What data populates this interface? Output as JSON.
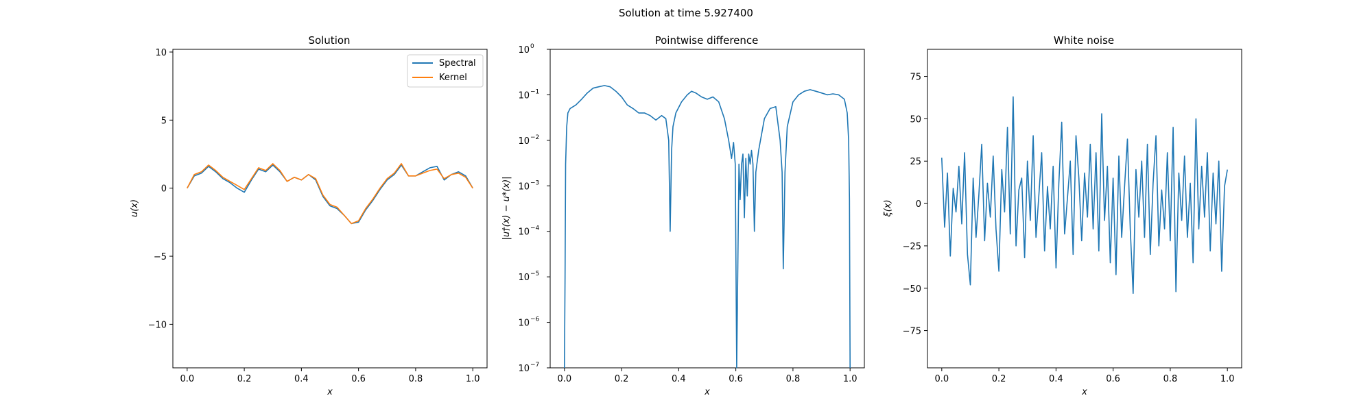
{
  "suptitle": "Solution at time 5.927400",
  "colors": {
    "spectral": "#1f77b4",
    "kernel": "#ff7f0e",
    "axes": "#000000"
  },
  "chart_data": [
    {
      "type": "line",
      "title": "Solution",
      "xlabel": "x",
      "ylabel": "u(x)",
      "xlim": [
        -0.05,
        1.05
      ],
      "ylim": [
        -13.2,
        10.2
      ],
      "yscale": "linear",
      "xticks": [
        0.0,
        0.2,
        0.4,
        0.6,
        0.8,
        1.0
      ],
      "xtick_labels": [
        "0.0",
        "0.2",
        "0.4",
        "0.6",
        "0.8",
        "1.0"
      ],
      "yticks": [
        -10,
        -5,
        0,
        5,
        10
      ],
      "ytick_labels": [
        "−10",
        "−5",
        "0",
        "5",
        "10"
      ],
      "legend": {
        "placement": "upper-right",
        "entries": [
          "Spectral",
          "Kernel"
        ]
      },
      "series": [
        {
          "name": "Spectral",
          "color": "#1f77b4",
          "x": [
            0.0,
            0.025,
            0.05,
            0.075,
            0.1,
            0.125,
            0.15,
            0.175,
            0.2,
            0.225,
            0.25,
            0.275,
            0.3,
            0.325,
            0.35,
            0.375,
            0.4,
            0.425,
            0.45,
            0.475,
            0.5,
            0.525,
            0.55,
            0.575,
            0.6,
            0.625,
            0.65,
            0.675,
            0.7,
            0.725,
            0.75,
            0.775,
            0.8,
            0.825,
            0.85,
            0.875,
            0.9,
            0.925,
            0.95,
            0.975,
            1.0
          ],
          "y": [
            0.0,
            0.9,
            1.1,
            1.6,
            1.2,
            0.7,
            0.4,
            0.0,
            -0.3,
            0.6,
            1.4,
            1.2,
            1.7,
            1.2,
            0.5,
            0.8,
            0.6,
            1.0,
            0.6,
            -0.6,
            -1.3,
            -1.5,
            -2.0,
            -2.6,
            -2.5,
            -1.6,
            -0.9,
            -0.1,
            0.6,
            1.0,
            1.7,
            0.9,
            0.9,
            1.2,
            1.5,
            1.6,
            0.6,
            1.0,
            1.2,
            0.9,
            0.0
          ]
        },
        {
          "name": "Kernel",
          "color": "#ff7f0e",
          "x": [
            0.0,
            0.025,
            0.05,
            0.075,
            0.1,
            0.125,
            0.15,
            0.175,
            0.2,
            0.225,
            0.25,
            0.275,
            0.3,
            0.325,
            0.35,
            0.375,
            0.4,
            0.425,
            0.45,
            0.475,
            0.5,
            0.525,
            0.55,
            0.575,
            0.6,
            0.625,
            0.65,
            0.675,
            0.7,
            0.725,
            0.75,
            0.775,
            0.8,
            0.825,
            0.85,
            0.875,
            0.9,
            0.925,
            0.95,
            0.975,
            1.0
          ],
          "y": [
            0.0,
            1.0,
            1.2,
            1.7,
            1.3,
            0.8,
            0.5,
            0.2,
            -0.1,
            0.7,
            1.5,
            1.3,
            1.8,
            1.3,
            0.5,
            0.8,
            0.6,
            1.0,
            0.7,
            -0.5,
            -1.2,
            -1.4,
            -2.0,
            -2.6,
            -2.4,
            -1.5,
            -0.8,
            0.0,
            0.7,
            1.1,
            1.8,
            0.9,
            0.9,
            1.1,
            1.3,
            1.4,
            0.7,
            1.0,
            1.1,
            0.8,
            0.0
          ]
        }
      ]
    },
    {
      "type": "line",
      "title": "Pointwise difference",
      "xlabel": "x",
      "ylabel": "|u†(x) − u*(x)|",
      "xlim": [
        -0.05,
        1.05
      ],
      "ylim": [
        1e-07,
        1
      ],
      "yscale": "log",
      "xticks": [
        0.0,
        0.2,
        0.4,
        0.6,
        0.8,
        1.0
      ],
      "xtick_labels": [
        "0.0",
        "0.2",
        "0.4",
        "0.6",
        "0.8",
        "1.0"
      ],
      "yticks": [
        1e-07,
        1e-06,
        1e-05,
        0.0001,
        0.001,
        0.01,
        0.1,
        1
      ],
      "ytick_labels": [
        "10",
        "10",
        "10",
        "10",
        "10",
        "10",
        "10",
        "10"
      ],
      "ytick_exponents": [
        "−7",
        "−6",
        "−5",
        "−4",
        "−3",
        "−2",
        "−1",
        "0"
      ],
      "series": [
        {
          "name": "",
          "color": "#1f77b4",
          "x": [
            0.0,
            0.002,
            0.004,
            0.008,
            0.012,
            0.02,
            0.04,
            0.06,
            0.08,
            0.1,
            0.12,
            0.14,
            0.16,
            0.18,
            0.2,
            0.22,
            0.24,
            0.26,
            0.28,
            0.3,
            0.32,
            0.34,
            0.355,
            0.365,
            0.37,
            0.375,
            0.38,
            0.39,
            0.41,
            0.43,
            0.445,
            0.46,
            0.48,
            0.5,
            0.52,
            0.54,
            0.56,
            0.575,
            0.585,
            0.592,
            0.598,
            0.603,
            0.607,
            0.611,
            0.615,
            0.62,
            0.625,
            0.63,
            0.635,
            0.64,
            0.645,
            0.65,
            0.655,
            0.66,
            0.665,
            0.67,
            0.68,
            0.7,
            0.72,
            0.74,
            0.755,
            0.762,
            0.766,
            0.772,
            0.78,
            0.8,
            0.82,
            0.84,
            0.86,
            0.88,
            0.9,
            0.92,
            0.94,
            0.96,
            0.98,
            0.99,
            0.995,
            0.998,
            1.0
          ],
          "y": [
            1e-07,
            1e-05,
            0.003,
            0.02,
            0.04,
            0.05,
            0.06,
            0.08,
            0.11,
            0.14,
            0.15,
            0.16,
            0.15,
            0.12,
            0.09,
            0.06,
            0.05,
            0.04,
            0.04,
            0.035,
            0.028,
            0.035,
            0.03,
            0.01,
            0.0001,
            0.006,
            0.02,
            0.04,
            0.07,
            0.1,
            0.12,
            0.11,
            0.09,
            0.08,
            0.09,
            0.07,
            0.03,
            0.01,
            0.004,
            0.009,
            0.003,
            1e-07,
            2e-05,
            0.003,
            0.0005,
            0.003,
            0.005,
            0.0002,
            0.004,
            0.0006,
            0.005,
            0.003,
            0.006,
            0.003,
            0.0001,
            0.002,
            0.006,
            0.03,
            0.05,
            0.055,
            0.01,
            0.002,
            1.5e-05,
            0.002,
            0.02,
            0.07,
            0.1,
            0.12,
            0.13,
            0.12,
            0.11,
            0.1,
            0.105,
            0.1,
            0.08,
            0.04,
            0.01,
            0.0005,
            1e-07
          ]
        }
      ]
    },
    {
      "type": "line",
      "title": "White noise",
      "xlabel": "x",
      "ylabel": "ξ(x)",
      "xlim": [
        -0.05,
        1.05
      ],
      "ylim": [
        -97,
        91
      ],
      "yscale": "linear",
      "xticks": [
        0.0,
        0.2,
        0.4,
        0.6,
        0.8,
        1.0
      ],
      "xtick_labels": [
        "0.0",
        "0.2",
        "0.4",
        "0.6",
        "0.8",
        "1.0"
      ],
      "yticks": [
        -75,
        -50,
        -25,
        0,
        25,
        50,
        75
      ],
      "ytick_labels": [
        "−75",
        "−50",
        "−25",
        "0",
        "25",
        "50",
        "75"
      ],
      "series": [
        {
          "name": "",
          "color": "#1f77b4",
          "x": [
            0.0,
            0.01,
            0.02,
            0.03,
            0.04,
            0.05,
            0.06,
            0.07,
            0.08,
            0.09,
            0.1,
            0.11,
            0.12,
            0.13,
            0.14,
            0.15,
            0.16,
            0.17,
            0.18,
            0.19,
            0.2,
            0.21,
            0.22,
            0.23,
            0.24,
            0.25,
            0.26,
            0.27,
            0.28,
            0.29,
            0.3,
            0.31,
            0.32,
            0.33,
            0.34,
            0.35,
            0.36,
            0.37,
            0.38,
            0.39,
            0.4,
            0.41,
            0.42,
            0.43,
            0.44,
            0.45,
            0.46,
            0.47,
            0.48,
            0.49,
            0.5,
            0.51,
            0.52,
            0.53,
            0.54,
            0.55,
            0.56,
            0.57,
            0.58,
            0.59,
            0.6,
            0.61,
            0.62,
            0.63,
            0.64,
            0.65,
            0.66,
            0.67,
            0.68,
            0.69,
            0.7,
            0.71,
            0.72,
            0.73,
            0.74,
            0.75,
            0.76,
            0.77,
            0.78,
            0.79,
            0.8,
            0.81,
            0.82,
            0.83,
            0.84,
            0.85,
            0.86,
            0.87,
            0.88,
            0.89,
            0.9,
            0.91,
            0.92,
            0.93,
            0.94,
            0.95,
            0.96,
            0.97,
            0.98,
            0.99,
            1.0
          ],
          "y": [
            27,
            -14,
            18,
            -31,
            9,
            -5,
            22,
            -12,
            30,
            -30,
            -48,
            15,
            -20,
            5,
            35,
            -22,
            12,
            -8,
            28,
            -15,
            -40,
            20,
            -5,
            45,
            -18,
            63,
            -25,
            8,
            15,
            -32,
            25,
            -10,
            40,
            -20,
            5,
            30,
            -28,
            10,
            -15,
            22,
            -38,
            12,
            48,
            -18,
            3,
            25,
            -30,
            40,
            15,
            -22,
            18,
            -8,
            35,
            -15,
            30,
            -28,
            53,
            -10,
            22,
            -35,
            15,
            -42,
            28,
            -20,
            10,
            38,
            -15,
            -53,
            20,
            -8,
            25,
            -20,
            35,
            -30,
            12,
            40,
            -25,
            8,
            -15,
            30,
            -22,
            45,
            -52,
            18,
            -10,
            28,
            -20,
            12,
            -35,
            50,
            -15,
            22,
            -8,
            30,
            -28,
            18,
            -12,
            25,
            -40,
            10,
            20
          ]
        }
      ]
    }
  ]
}
